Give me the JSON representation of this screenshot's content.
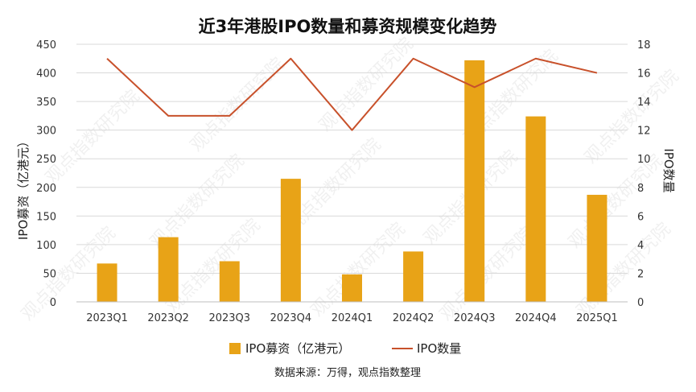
{
  "chart_data": {
    "type": "bar+line",
    "title": "近3年港股IPO数量和募资规模变化趋势",
    "categories": [
      "2023Q1",
      "2023Q2",
      "2023Q3",
      "2023Q4",
      "2024Q1",
      "2024Q2",
      "2024Q3",
      "2024Q4",
      "2025Q1"
    ],
    "series": [
      {
        "name": "IPO募资（亿港元）",
        "type": "bar",
        "axis": "left",
        "color": "#E8A317",
        "values": [
          67,
          113,
          71,
          215,
          48,
          88,
          422,
          324,
          187
        ]
      },
      {
        "name": "IPO数量",
        "type": "line",
        "axis": "right",
        "color": "#C8512B",
        "values": [
          17,
          13,
          13,
          17,
          12,
          17,
          15,
          17,
          16
        ]
      }
    ],
    "ylabel_left": "IPO募资（亿港元）",
    "ylabel_right": "IPO数量",
    "ylim_left": [
      0,
      450
    ],
    "yticks_left": [
      0,
      50,
      100,
      150,
      200,
      250,
      300,
      350,
      400,
      450
    ],
    "ylim_right": [
      0,
      18
    ],
    "yticks_right": [
      0,
      2,
      4,
      6,
      8,
      10,
      12,
      14,
      16,
      18
    ],
    "grid": true,
    "legend_position": "bottom",
    "source_note": "数据来源：万得，观点指数整理",
    "watermark_text": "观点指数研究院"
  }
}
